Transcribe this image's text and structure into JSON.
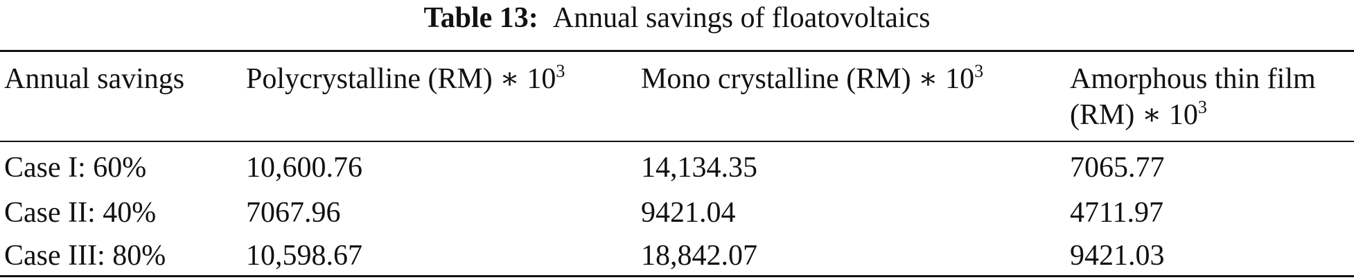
{
  "caption": {
    "label": "Table 13:",
    "text": "Annual savings of floatovoltaics"
  },
  "table": {
    "headers": {
      "col0": "Annual savings",
      "col1_text": "Polycrystalline (RM) ∗ 10",
      "col1_exp": "3",
      "col2_text": "Mono crystalline (RM) ∗ 10",
      "col2_exp": "3",
      "col3_line1": "Amorphous thin film",
      "col3_line2_text": "(RM) ∗ 10",
      "col3_line2_exp": "3"
    },
    "rows": [
      [
        "Case I: 60%",
        "10,600.76",
        "14,134.35",
        "7065.77"
      ],
      [
        "Case II: 40%",
        "7067.96",
        "9421.04",
        "4711.97"
      ],
      [
        "Case III: 80%",
        "10,598.67",
        "18,842.07",
        "9421.03"
      ]
    ]
  }
}
